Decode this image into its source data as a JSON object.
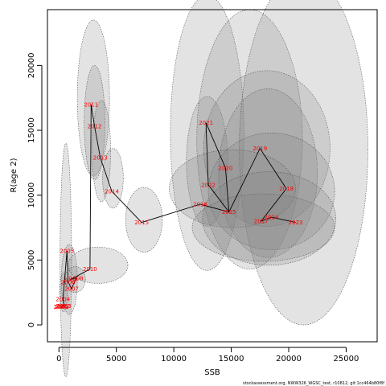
{
  "chart_data": {
    "type": "scatter",
    "title": "",
    "xlabel": "SSB",
    "ylabel": "R(age 2)",
    "xlim": [
      -1000,
      27700
    ],
    "ylim": [
      -1300,
      24300
    ],
    "x_ticks": [
      0,
      5000,
      10000,
      15000,
      20000,
      25000
    ],
    "y_ticks": [
      0,
      5000,
      10000,
      15000,
      20000
    ],
    "grid": false,
    "legend": "none",
    "colors": {
      "points": "#ff0000",
      "path": "#000000",
      "ellipse_fill": "#808080",
      "ellipse_stroke": "#555555"
    },
    "points": [
      {
        "year": "2000",
        "x": 150,
        "y": 1400
      },
      {
        "year": "2001",
        "x": 250,
        "y": 1400
      },
      {
        "year": "2002",
        "x": 350,
        "y": 1450
      },
      {
        "year": "2003",
        "x": 450,
        "y": 1450
      },
      {
        "year": "2004",
        "x": 350,
        "y": 2000
      },
      {
        "year": "2005",
        "x": 700,
        "y": 5700
      },
      {
        "year": "2006",
        "x": 800,
        "y": 3300
      },
      {
        "year": "2007",
        "x": 1100,
        "y": 2800
      },
      {
        "year": "2008",
        "x": 1500,
        "y": 3600
      },
      {
        "year": "2009",
        "x": 1000,
        "y": 3500
      },
      {
        "year": "2010",
        "x": 2700,
        "y": 4300
      },
      {
        "year": "2011",
        "x": 2800,
        "y": 17000
      },
      {
        "year": "2012",
        "x": 3100,
        "y": 15300
      },
      {
        "year": "2013",
        "x": 3600,
        "y": 12900
      },
      {
        "year": "2014",
        "x": 4600,
        "y": 10300
      },
      {
        "year": "2015",
        "x": 7200,
        "y": 7900
      },
      {
        "year": "2016",
        "x": 12300,
        "y": 9300
      },
      {
        "year": "2017",
        "x": 17600,
        "y": 8000
      },
      {
        "year": "2018",
        "x": 19800,
        "y": 10500
      },
      {
        "year": "2019",
        "x": 17500,
        "y": 13600
      },
      {
        "year": "2020",
        "x": 14500,
        "y": 12100
      },
      {
        "year": "2021",
        "x": 12800,
        "y": 15600
      },
      {
        "year": "2022",
        "x": 13000,
        "y": 10800
      },
      {
        "year": "2023",
        "x": 20600,
        "y": 7900
      },
      {
        "year": "2024",
        "x": 18500,
        "y": 8300
      },
      {
        "year": "2025",
        "x": 14800,
        "y": 8700
      }
    ],
    "path_order": [
      "2000",
      "2001",
      "2002",
      "2003",
      "2004",
      "2005",
      "2006",
      "2007",
      "2008",
      "2009",
      "2010",
      "2011",
      "2012",
      "2013",
      "2014",
      "2015",
      "2016",
      "2025",
      "2020",
      "2021",
      "2022",
      "2025",
      "2019",
      "2018",
      "2017",
      "2024",
      "2023"
    ],
    "ellipses": [
      {
        "cx": 600,
        "cy": 5000,
        "rx": 500,
        "ry": 9000
      },
      {
        "cx": 900,
        "cy": 3500,
        "rx": 700,
        "ry": 2700
      },
      {
        "cx": 400,
        "cy": 2500,
        "rx": 350,
        "ry": 1500
      },
      {
        "cx": 1400,
        "cy": 3500,
        "rx": 900,
        "ry": 1000
      },
      {
        "cx": 3400,
        "cy": 4600,
        "rx": 2600,
        "ry": 1400
      },
      {
        "cx": 3000,
        "cy": 17500,
        "rx": 1400,
        "ry": 6000
      },
      {
        "cx": 3100,
        "cy": 15600,
        "rx": 900,
        "ry": 4400
      },
      {
        "cx": 3700,
        "cy": 13400,
        "rx": 800,
        "ry": 3900
      },
      {
        "cx": 4700,
        "cy": 11300,
        "rx": 900,
        "ry": 2300
      },
      {
        "cx": 7400,
        "cy": 8100,
        "rx": 1600,
        "ry": 2500
      },
      {
        "cx": 12900,
        "cy": 14800,
        "rx": 3200,
        "ry": 10600
      },
      {
        "cx": 12900,
        "cy": 12600,
        "rx": 1800,
        "ry": 5000
      },
      {
        "cx": 16600,
        "cy": 14300,
        "rx": 4600,
        "ry": 10000
      },
      {
        "cx": 18100,
        "cy": 13600,
        "rx": 5500,
        "ry": 6000
      },
      {
        "cx": 18200,
        "cy": 11700,
        "rx": 4300,
        "ry": 6500
      },
      {
        "cx": 21300,
        "cy": 13500,
        "rx": 5600,
        "ry": 13500
      },
      {
        "cx": 18500,
        "cy": 10300,
        "rx": 5500,
        "ry": 4500
      },
      {
        "cx": 15100,
        "cy": 10500,
        "rx": 5500,
        "ry": 3000
      },
      {
        "cx": 17800,
        "cy": 7500,
        "rx": 6200,
        "ry": 2600
      },
      {
        "cx": 18300,
        "cy": 8200,
        "rx": 5800,
        "ry": 3600
      }
    ],
    "footer_note": "stockassessment.org, NWW326_WGSC_test, r10812, git:1cc464b80f8f"
  }
}
